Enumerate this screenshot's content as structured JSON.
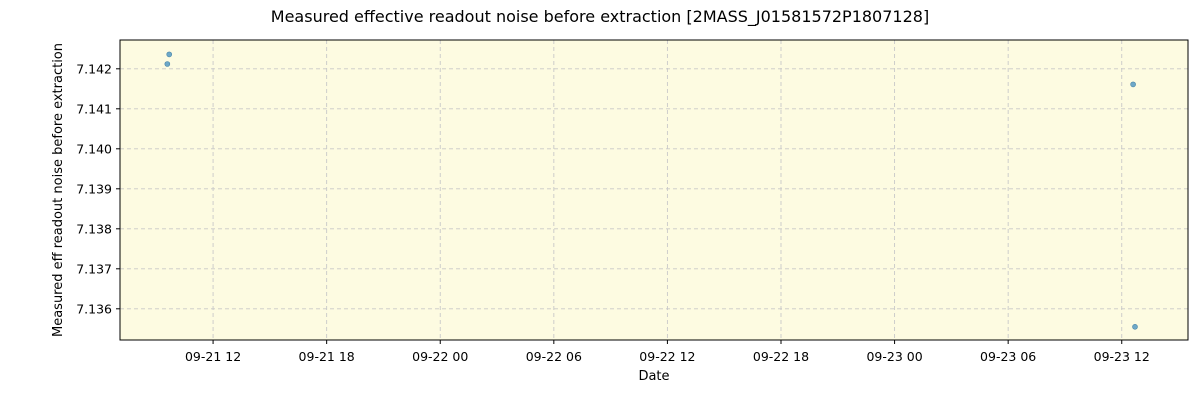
{
  "chart_data": {
    "type": "scatter",
    "title": "Measured effective readout noise before extraction [2MASS_J01581572P1807128]",
    "xlabel": "Date",
    "ylabel": "Measured eff readout noise before extraction",
    "x_tick_labels": [
      "09-21 12",
      "09-21 18",
      "09-22 00",
      "09-22 06",
      "09-22 12",
      "09-22 18",
      "09-23 00",
      "09-23 06",
      "09-23 12"
    ],
    "x_ticks": [
      "2024-09-21T12:00",
      "2024-09-21T18:00",
      "2024-09-22T00:00",
      "2024-09-22T06:00",
      "2024-09-22T12:00",
      "2024-09-22T18:00",
      "2024-09-23T00:00",
      "2024-09-23T06:00",
      "2024-09-23T12:00"
    ],
    "xlim": [
      "2024-09-21T07:05",
      "2024-09-23T15:30"
    ],
    "y_ticks": [
      7.136,
      7.137,
      7.138,
      7.139,
      7.14,
      7.141,
      7.142
    ],
    "y_tick_labels": [
      "7.136",
      "7.137",
      "7.138",
      "7.139",
      "7.140",
      "7.141",
      "7.142"
    ],
    "ylim": [
      7.13522,
      7.14272
    ],
    "points": [
      {
        "x": "2024-09-21T09:35",
        "y": 7.14212
      },
      {
        "x": "2024-09-21T09:41",
        "y": 7.14236
      },
      {
        "x": "2024-09-23T12:36",
        "y": 7.14161
      },
      {
        "x": "2024-09-23T12:42",
        "y": 7.13555
      }
    ],
    "grid": true,
    "colors": {
      "plot_background": "#fdfbe1",
      "marker": "#6ea8c8",
      "marker_edge": "#4a86a8",
      "grid": "#c8c8c8"
    }
  }
}
